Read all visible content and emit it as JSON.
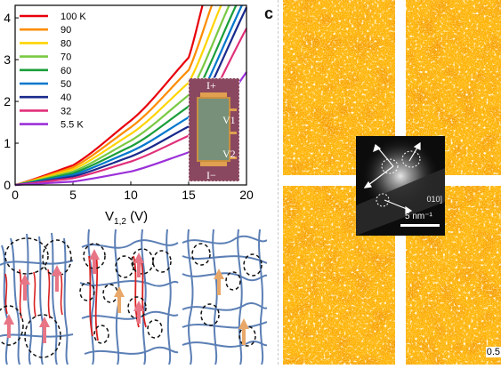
{
  "chart_data": {
    "type": "line",
    "xlabel": "V",
    "xlabel_sub": "1,2",
    "xlabel_unit": " (V)",
    "x_ticks": [
      "0",
      "5",
      "10",
      "15",
      "20"
    ],
    "y_ticks": [
      "0",
      "1",
      "2",
      "3",
      "4"
    ],
    "xlim": [
      0,
      20
    ],
    "ylim": [
      0,
      4.3
    ],
    "legend_position": "top-left",
    "series": [
      {
        "name": "100 K",
        "color": "#e8000b",
        "curve": [
          [
            0,
            0
          ],
          [
            5,
            0.47
          ],
          [
            10,
            1.54
          ],
          [
            15,
            3.05
          ],
          [
            16.2,
            4.3
          ]
        ]
      },
      {
        "name": "90",
        "color": "#ff8c00",
        "curve": [
          [
            0,
            0
          ],
          [
            5,
            0.42
          ],
          [
            10,
            1.38
          ],
          [
            15,
            2.75
          ],
          [
            17.0,
            4.3
          ]
        ]
      },
      {
        "name": "80",
        "color": "#ffd400",
        "curve": [
          [
            0,
            0
          ],
          [
            5,
            0.37
          ],
          [
            10,
            1.22
          ],
          [
            15,
            2.45
          ],
          [
            17.8,
            4.3
          ]
        ]
      },
      {
        "name": "70",
        "color": "#7ac943",
        "curve": [
          [
            0,
            0
          ],
          [
            5,
            0.32
          ],
          [
            10,
            1.06
          ],
          [
            15,
            2.15
          ],
          [
            18.5,
            4.3
          ]
        ]
      },
      {
        "name": "60",
        "color": "#1a9e3a",
        "curve": [
          [
            0,
            0
          ],
          [
            5,
            0.28
          ],
          [
            10,
            0.92
          ],
          [
            15,
            1.88
          ],
          [
            19.1,
            4.3
          ]
        ]
      },
      {
        "name": "50",
        "color": "#0077cc",
        "curve": [
          [
            0,
            0
          ],
          [
            5,
            0.24
          ],
          [
            10,
            0.8
          ],
          [
            15,
            1.62
          ],
          [
            19.6,
            4.3
          ]
        ]
      },
      {
        "name": "40",
        "color": "#1a2a8c",
        "curve": [
          [
            0,
            0
          ],
          [
            5,
            0.2
          ],
          [
            10,
            0.68
          ],
          [
            15,
            1.4
          ],
          [
            20.0,
            4.25
          ]
        ]
      },
      {
        "name": "32",
        "color": "#e0307a",
        "curve": [
          [
            0,
            0
          ],
          [
            5,
            0.16
          ],
          [
            10,
            0.56
          ],
          [
            15,
            1.18
          ],
          [
            20.0,
            3.75
          ]
        ]
      },
      {
        "name": "5.5 K",
        "color": "#9b30d9",
        "curve": [
          [
            0,
            0
          ],
          [
            5,
            0.08
          ],
          [
            10,
            0.32
          ],
          [
            15,
            0.78
          ],
          [
            20.0,
            2.7
          ]
        ]
      }
    ]
  },
  "inset_device": {
    "top_label": "I+",
    "bottom_label": "I−",
    "v1_label": "V1",
    "v2_label": "V2"
  },
  "panel_label": "c",
  "tem": {
    "scale_label": "0.5",
    "inset_zone_label": "010]",
    "inset_scale_label": "5 nm⁻¹"
  },
  "colors": {
    "device_bg": "#8a4860",
    "contact": "#e0a050",
    "sample": "#78907a",
    "fiber": "#5b7fb5",
    "fiber_red": "#d92020",
    "arrow_pink": "#e87585",
    "arrow_orange": "#e8a86a",
    "tem_base": "#ffb000",
    "tem_dark": "#e65800",
    "tem_light": "#fff2c0"
  }
}
